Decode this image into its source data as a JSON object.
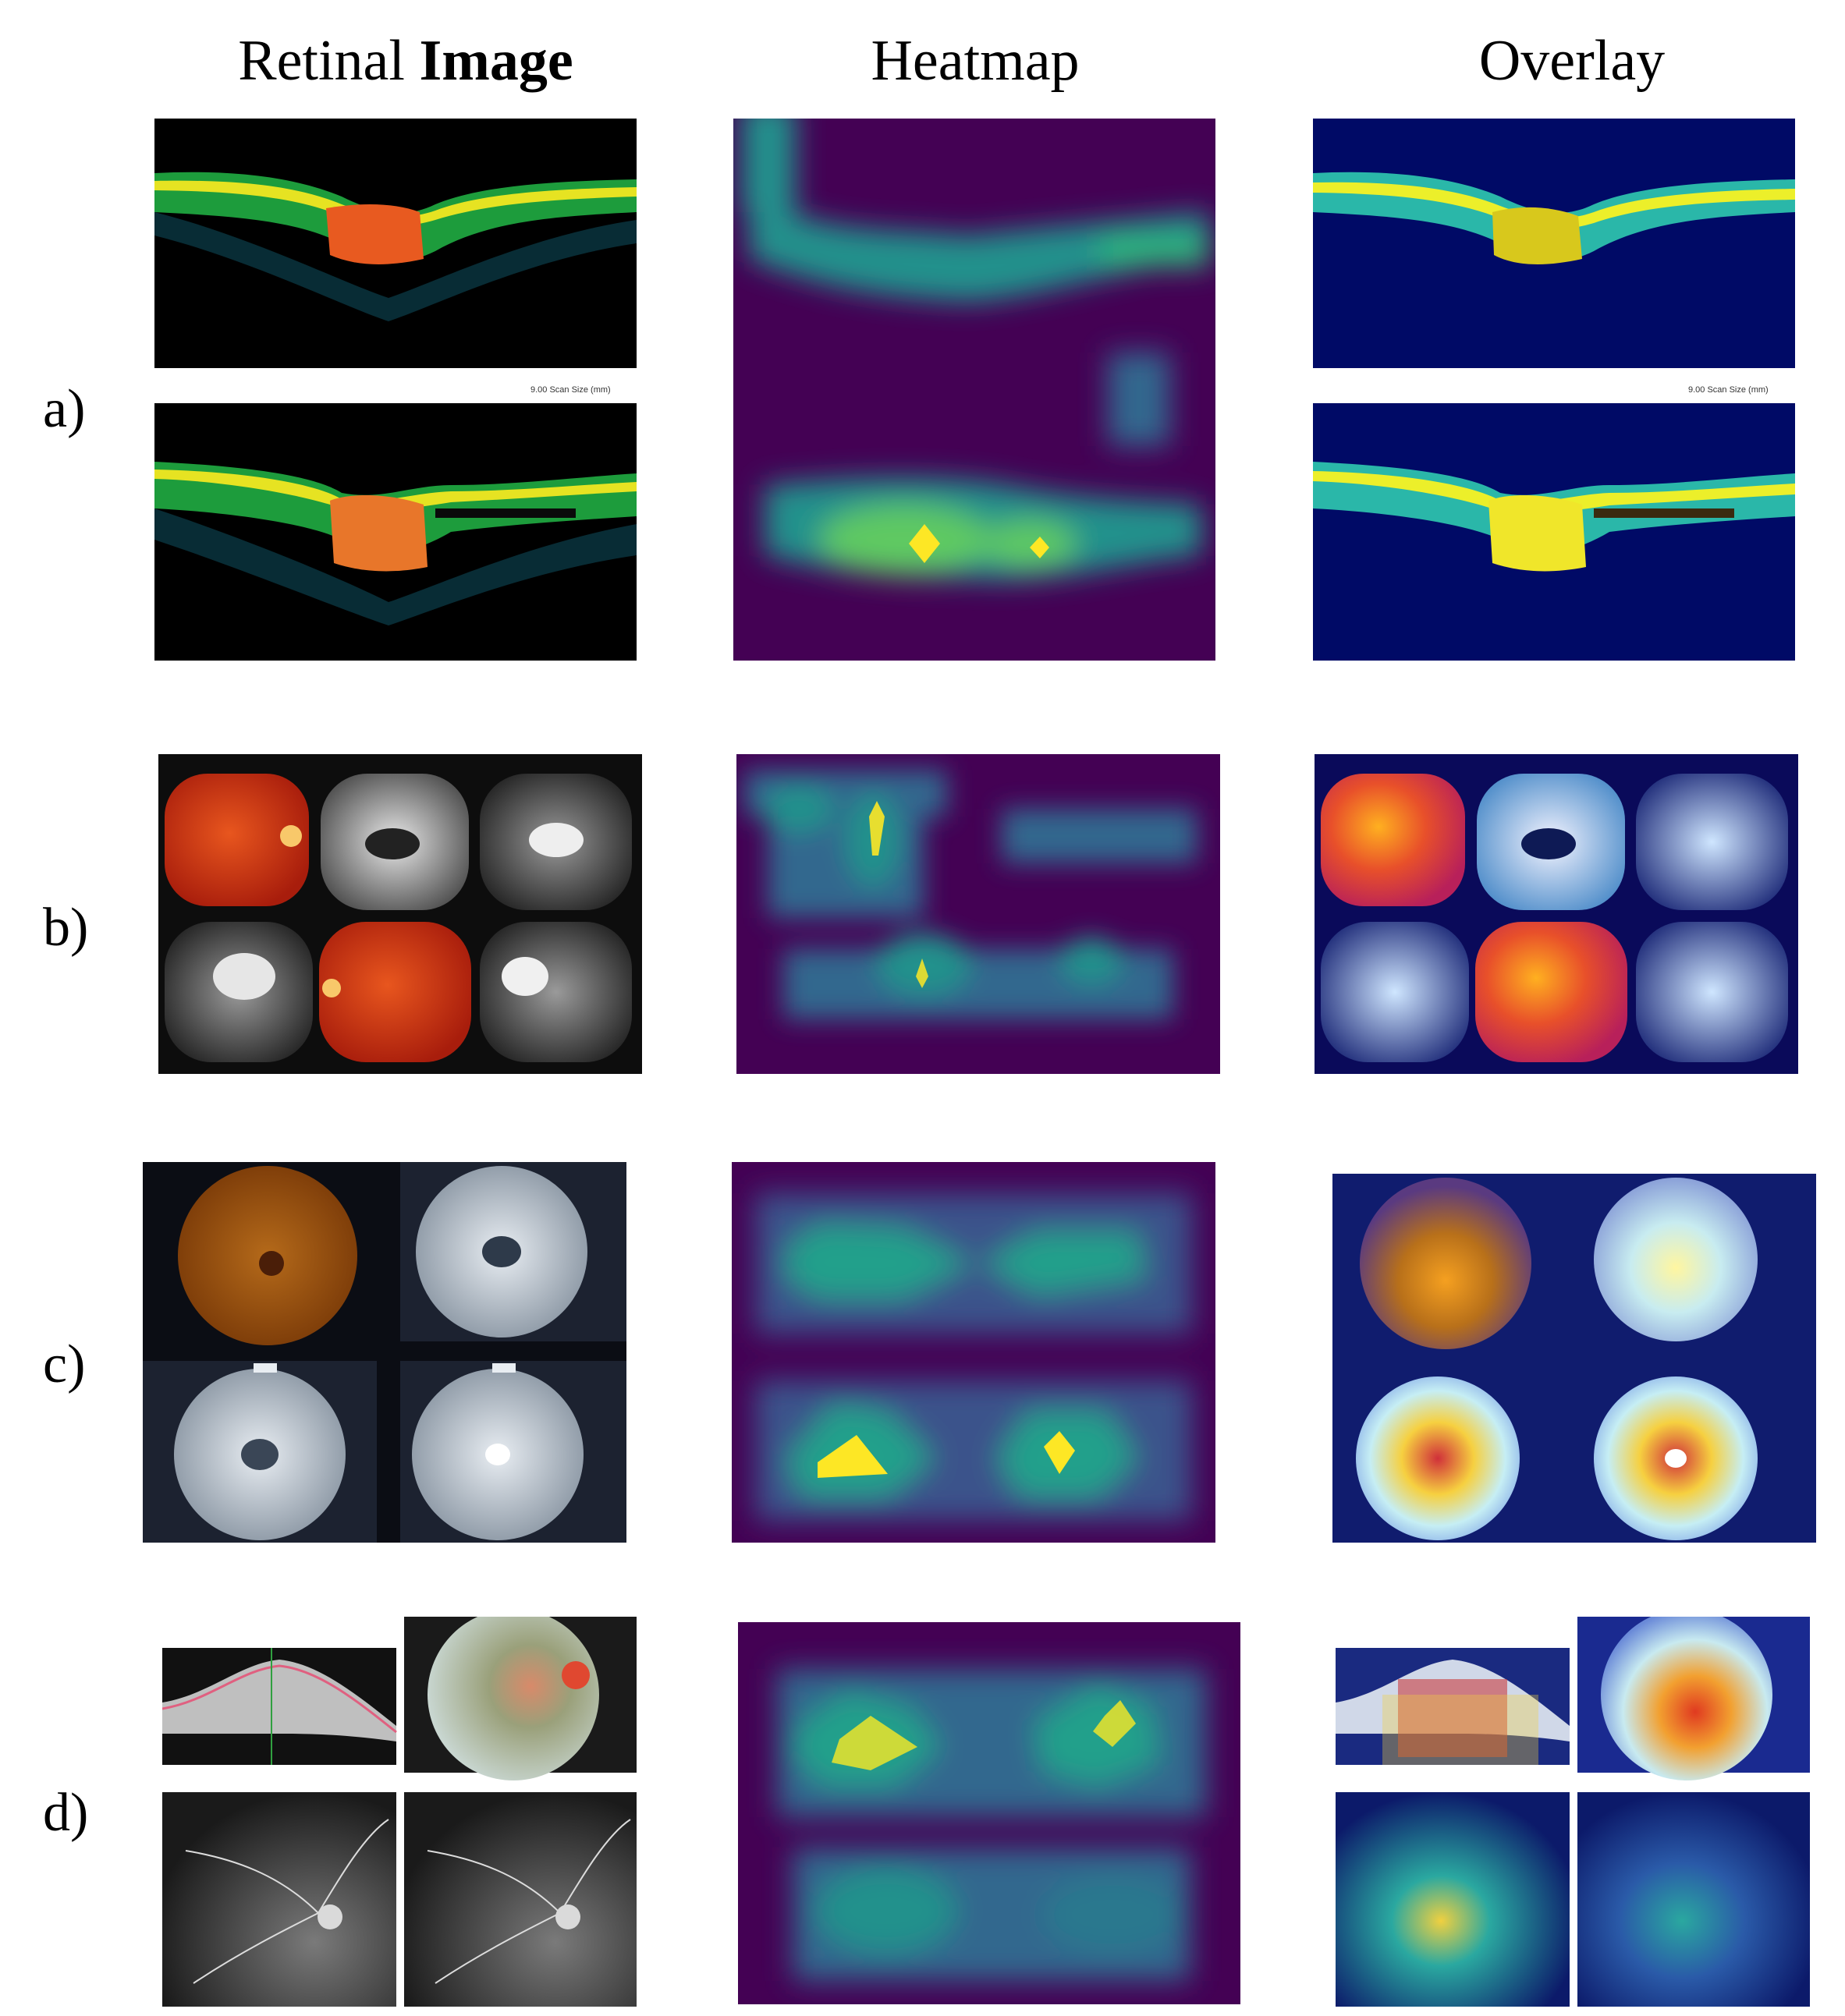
{
  "columns": {
    "retinal_prefix": "Retinal ",
    "retinal_bold": "Image",
    "heatmap": "Heatmap",
    "overlay": "Overlay"
  },
  "rows": [
    {
      "label": "a)",
      "description": "OCT B-scans"
    },
    {
      "label": "b)",
      "description": "Fundus and angiography montage (6 images)"
    },
    {
      "label": "c)",
      "description": "Fundus and angiography montage (4 images)"
    },
    {
      "label": "d)",
      "description": "OCT, fundus photograph and angiograms (4 images)"
    }
  ],
  "scan_caption": "9.00 Scan Size (mm)",
  "colors": {
    "heatmap_background": "#440154",
    "heatmap_low": "#31688e",
    "heatmap_mid": "#21918c",
    "heatmap_high": "#5ec962",
    "heatmap_peak": "#fde725",
    "overlay_background": "#000a66",
    "fundus_red": "#c0301a",
    "oct_green": "#7ad42a"
  }
}
